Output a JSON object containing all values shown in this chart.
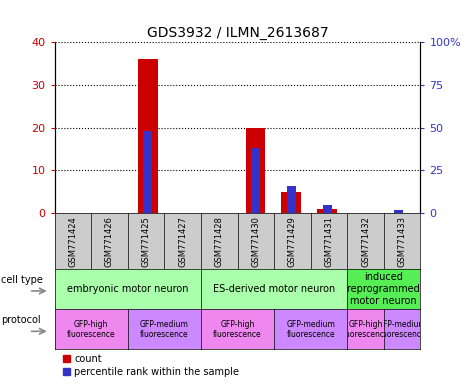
{
  "title": "GDS3932 / ILMN_2613687",
  "samples": [
    "GSM771424",
    "GSM771426",
    "GSM771425",
    "GSM771427",
    "GSM771428",
    "GSM771430",
    "GSM771429",
    "GSM771431",
    "GSM771432",
    "GSM771433"
  ],
  "counts": [
    0,
    0,
    36,
    0,
    0,
    20,
    5,
    1,
    0,
    0
  ],
  "percentiles": [
    0,
    0,
    48,
    0,
    0,
    38,
    16,
    5,
    0,
    2
  ],
  "ylim_left": [
    0,
    40
  ],
  "ylim_right": [
    0,
    100
  ],
  "yticks_left": [
    0,
    10,
    20,
    30,
    40
  ],
  "yticks_right": [
    0,
    25,
    50,
    75,
    100
  ],
  "yticklabels_right": [
    "0",
    "25",
    "50",
    "75",
    "100%"
  ],
  "bar_color_red": "#cc0000",
  "bar_color_blue": "#3333cc",
  "cell_type_groups": [
    {
      "label": "embryonic motor neuron",
      "start": 0,
      "end": 3,
      "color": "#aaffaa"
    },
    {
      "label": "ES-derived motor neuron",
      "start": 4,
      "end": 7,
      "color": "#aaffaa"
    },
    {
      "label": "induced\n(reprogrammed)\nmotor neuron",
      "start": 8,
      "end": 9,
      "color": "#55ee55"
    }
  ],
  "protocol_groups": [
    {
      "label": "GFP-high\nfluorescence",
      "start": 0,
      "end": 1,
      "color": "#ee88ee"
    },
    {
      "label": "GFP-medium\nfluorescence",
      "start": 2,
      "end": 3,
      "color": "#cc88ff"
    },
    {
      "label": "GFP-high\nfluorescence",
      "start": 4,
      "end": 5,
      "color": "#ee88ee"
    },
    {
      "label": "GFP-medium\nfluorescence",
      "start": 6,
      "end": 7,
      "color": "#cc88ff"
    },
    {
      "label": "GFP-high\nfluorescence",
      "start": 8,
      "end": 8,
      "color": "#ee88ee"
    },
    {
      "label": "GFP-medium\nfluorescence",
      "start": 9,
      "end": 9,
      "color": "#cc88ff"
    }
  ],
  "legend_count_color": "#cc0000",
  "legend_percentile_color": "#3333cc",
  "bg_color": "#ffffff",
  "tick_label_color_left": "#cc0000",
  "tick_label_color_right": "#3333cc",
  "sample_box_color": "#cccccc"
}
